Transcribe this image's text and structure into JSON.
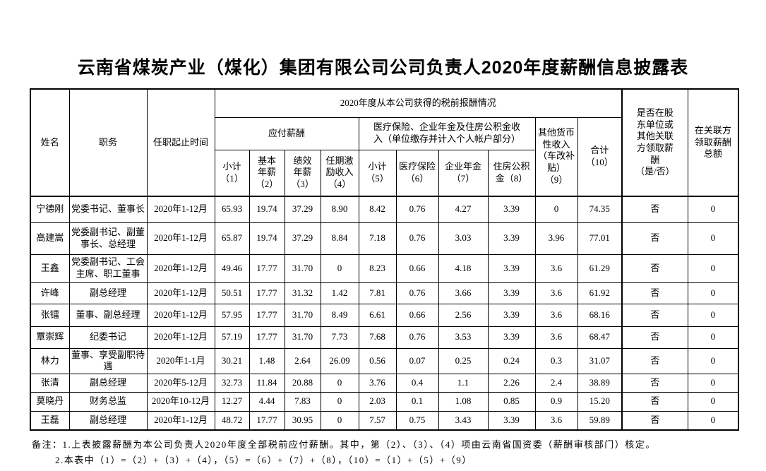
{
  "title": "云南省煤炭产业（煤化）集团有限公司公司负责人2020年度薪酬信息披露表",
  "table": {
    "header": {
      "name": "姓名",
      "position": "职务",
      "term": "任职起止时间",
      "pretax_group": "2020年度从本公司获得的税前报酬情况",
      "payable_group": "应付薪酬",
      "insurance_group": "医疗保险、企业年金及住房公积金收\n入（单位缴存并计入个人帐户部分）",
      "other_income_9": "其他货币\n性收入\n（车改补\n贴）\n（9）",
      "total_10": "合计\n（10）",
      "related_question": "是否在股\n东单位或\n其他关联\n方领取薪\n酬\n（是/否）",
      "related_amount": "在关联方\n领取薪酬\n总额",
      "sub": [
        "小计\n（1）",
        "基本\n年薪\n（2）",
        "绩效\n年薪\n（3）",
        "任期激\n励收入\n（4）",
        "小计\n（5）",
        "医疗保险\n（6）",
        "企业年金\n（7）",
        "住房公积\n金（8）"
      ]
    },
    "rows": [
      {
        "name": "宁德刚",
        "position": "党委书记、董事长",
        "term": "2020年1-12月",
        "values": [
          "65.93",
          "19.74",
          "37.29",
          "8.90",
          "8.42",
          "0.76",
          "4.27",
          "3.39",
          "0",
          "74.35"
        ],
        "related": "否",
        "related_amount": "0"
      },
      {
        "name": "高建嵩",
        "position": "党委副书记、副董事长、总经理",
        "term": "2020年1-12月",
        "values": [
          "65.87",
          "19.74",
          "37.29",
          "8.84",
          "7.18",
          "0.76",
          "3.03",
          "3.39",
          "3.96",
          "77.01"
        ],
        "related": "否",
        "related_amount": "0"
      },
      {
        "name": "王鑫",
        "position": "党委副书记、工会主席、职工董事",
        "term": "2020年1-12月",
        "values": [
          "49.46",
          "17.77",
          "31.70",
          "0",
          "8.23",
          "0.66",
          "4.18",
          "3.39",
          "3.6",
          "61.29"
        ],
        "related": "否",
        "related_amount": "0"
      },
      {
        "name": "许峰",
        "position": "副总经理",
        "term": "2020年1-12月",
        "values": [
          "50.51",
          "17.77",
          "31.32",
          "1.42",
          "7.81",
          "0.76",
          "3.66",
          "3.39",
          "3.6",
          "61.92"
        ],
        "related": "否",
        "related_amount": "0"
      },
      {
        "name": "张镭",
        "position": "董事、副总经理",
        "term": "2020年1-12月",
        "values": [
          "57.95",
          "17.77",
          "31.70",
          "8.49",
          "6.61",
          "0.66",
          "2.56",
          "3.39",
          "3.6",
          "68.16"
        ],
        "related": "否",
        "related_amount": "0"
      },
      {
        "name": "覃崇辉",
        "position": "纪委书记",
        "term": "2020年1-12月",
        "values": [
          "57.19",
          "17.77",
          "31.70",
          "7.73",
          "7.68",
          "0.76",
          "3.53",
          "3.39",
          "3.6",
          "68.47"
        ],
        "related": "否",
        "related_amount": "0"
      },
      {
        "name": "林力",
        "position": "董事、享受副职待遇",
        "term": "2020年1-1月",
        "values": [
          "30.21",
          "1.48",
          "2.64",
          "26.09",
          "0.56",
          "0.07",
          "0.25",
          "0.24",
          "0.3",
          "31.07"
        ],
        "related": "否",
        "related_amount": "0"
      },
      {
        "name": "张清",
        "position": "副总经理",
        "term": "2020年5-12月",
        "values": [
          "32.73",
          "11.84",
          "20.88",
          "0",
          "3.76",
          "0.4",
          "1.1",
          "2.26",
          "2.4",
          "38.89"
        ],
        "related": "否",
        "related_amount": "0"
      },
      {
        "name": "莫晓丹",
        "position": "财务总监",
        "term": "2020年10-12月",
        "values": [
          "12.27",
          "4.44",
          "7.83",
          "0",
          "2.03",
          "0.1",
          "1.08",
          "0.85",
          "0.9",
          "15.20"
        ],
        "related": "否",
        "related_amount": "0"
      },
      {
        "name": "王磊",
        "position": "副总经理",
        "term": "2020年1-12月",
        "values": [
          "48.72",
          "17.77",
          "30.95",
          "0",
          "7.57",
          "0.75",
          "3.43",
          "3.39",
          "3.6",
          "59.89"
        ],
        "related": "否",
        "related_amount": "0"
      }
    ]
  },
  "notes": {
    "line1": "备注：1.上表披露薪酬为本公司负责人2020年度全部税前应付薪酬。其中，第（2）、（3）、（4）项由云南省国资委（薪酬审核部门）核定。",
    "line2": "2.本表中（1）=（2）+（3）+（4），（5）=（6）+（7）+（8），（10）=（1）+（5）+（9）"
  }
}
